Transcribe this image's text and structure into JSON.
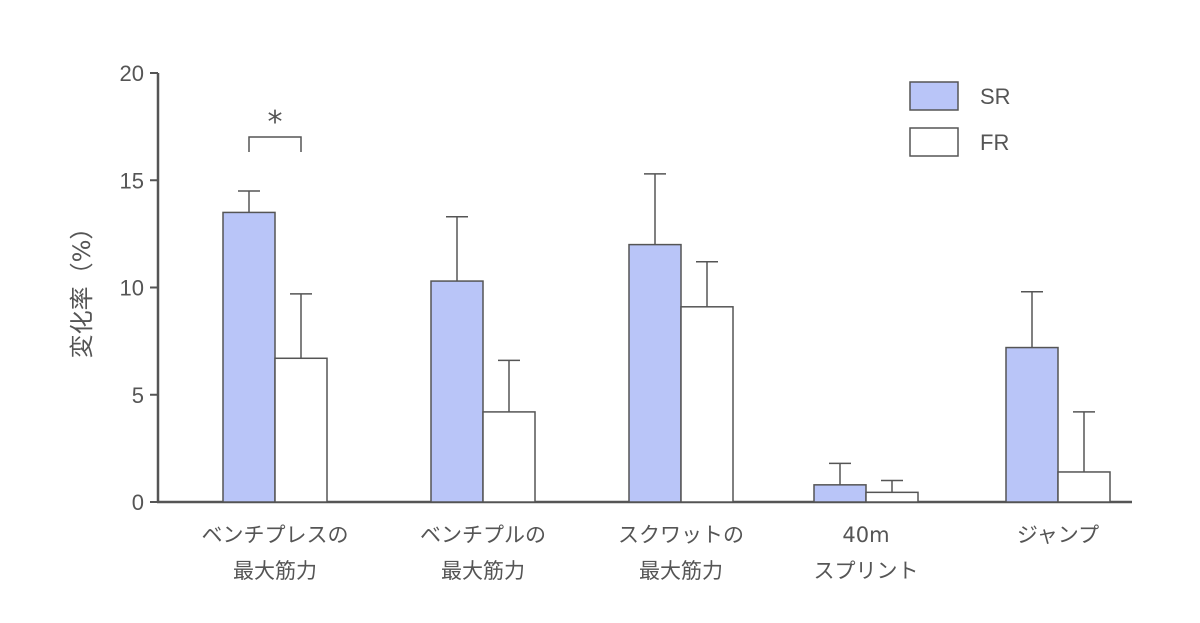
{
  "chart_data": {
    "type": "bar",
    "title": "",
    "ylabel": "変化率（%）",
    "xlabel": "",
    "ylim": [
      0,
      20
    ],
    "yticks": [
      0,
      5,
      10,
      15,
      20
    ],
    "categories": [
      [
        "ベンチプレスの",
        "最大筋力"
      ],
      [
        "ベンチプルの",
        "最大筋力"
      ],
      [
        "スクワットの",
        "最大筋力"
      ],
      [
        "40m",
        "スプリント"
      ],
      [
        "ジャンプ"
      ]
    ],
    "series": [
      {
        "name": "SR",
        "color": "#b9c5f8",
        "values": [
          13.5,
          10.3,
          12.0,
          0.8,
          7.2
        ],
        "errors": [
          1.0,
          3.0,
          3.3,
          1.0,
          2.6
        ]
      },
      {
        "name": "FR",
        "color": "#ffffff",
        "values": [
          6.7,
          4.2,
          9.1,
          0.45,
          1.4
        ],
        "errors": [
          3.0,
          2.4,
          2.1,
          0.55,
          2.8
        ]
      }
    ],
    "annotations": [
      {
        "text": "*",
        "category_index": 0,
        "between_series": [
          0,
          1
        ]
      }
    ],
    "legend": {
      "position": "top-right"
    },
    "grid": false
  },
  "colors": {
    "axis": "#555555",
    "bar_stroke": "#555555",
    "text": "#555555"
  }
}
